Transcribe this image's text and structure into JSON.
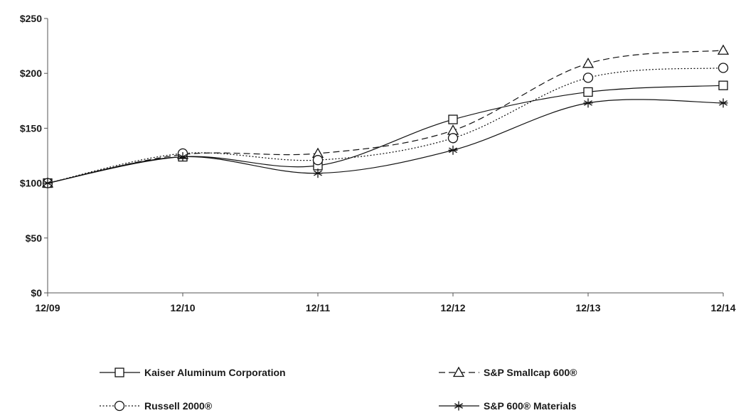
{
  "chart_data": {
    "type": "line",
    "title": "",
    "xlabel": "",
    "ylabel": "",
    "categories": [
      "12/09",
      "12/10",
      "12/11",
      "12/12",
      "12/13",
      "12/14"
    ],
    "y_tick_labels": [
      "$0",
      "$50",
      "$100",
      "$150",
      "$200",
      "$250"
    ],
    "ylim": [
      0,
      250
    ],
    "y_ticks": [
      0,
      50,
      100,
      150,
      200,
      250
    ],
    "grid": false,
    "legend_position": "bottom",
    "series": [
      {
        "name": "Kaiser Aluminum Corporation",
        "values": [
          100,
          124,
          116,
          158,
          183,
          189
        ],
        "marker": "square",
        "dash": "solid"
      },
      {
        "name": "S&P Smallcap 600®",
        "values": [
          100,
          126,
          127,
          148,
          209,
          221
        ],
        "marker": "triangle",
        "dash": "dashed"
      },
      {
        "name": "Russell 2000®",
        "values": [
          100,
          127,
          121,
          141,
          196,
          205
        ],
        "marker": "circle",
        "dash": "dotted"
      },
      {
        "name": "S&P 600® Materials",
        "values": [
          100,
          124,
          109,
          130,
          173,
          173
        ],
        "marker": "asterisk",
        "dash": "solid"
      }
    ]
  }
}
